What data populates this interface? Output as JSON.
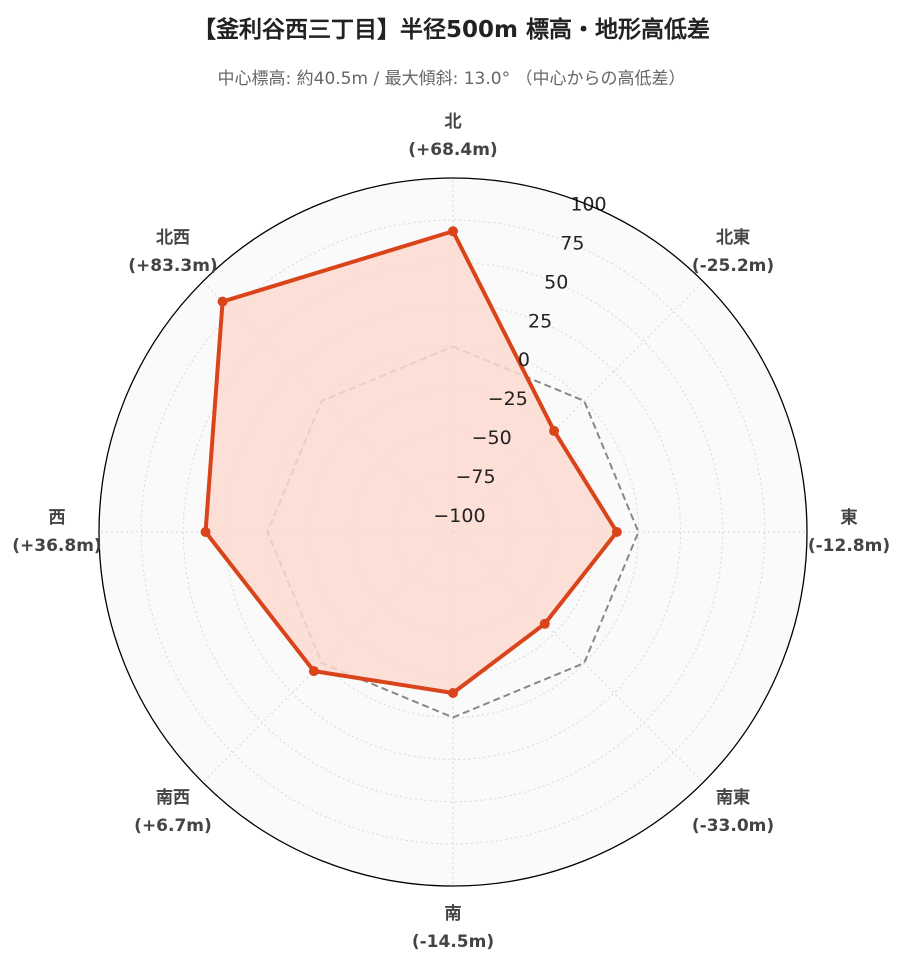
{
  "title": "【釜利谷西三丁目】半径500m 標高・地形高低差",
  "subtitle": "中心標高: 約40.5m / 最大傾斜: 13.0° （中心からの高低差）",
  "colors": {
    "series": "#d9441b",
    "series_fill": "#fcd9d0",
    "reference": "#888888",
    "background": "#fafafa",
    "grid": "#d8d8d8",
    "outline": "#000000"
  },
  "chart_data": {
    "type": "radar",
    "title": "【釜利谷西三丁目】半径500m 標高・地形高低差",
    "subtitle": "中心標高: 約40.5m / 最大傾斜: 13.0° （中心からの高低差）",
    "categories": [
      "北",
      "北東",
      "東",
      "南東",
      "南",
      "南西",
      "西",
      "北西"
    ],
    "category_values": [
      "(+68.4m)",
      "(-25.2m)",
      "(-12.8m)",
      "(-33.0m)",
      "(-14.5m)",
      "(+6.7m)",
      "(+36.8m)",
      "(+83.3m)"
    ],
    "series": [
      {
        "values": [
          68.4,
          -25.2,
          -12.8,
          -33.0,
          -14.5,
          6.7,
          36.8,
          83.3
        ]
      },
      {
        "values": [
          0,
          0,
          0,
          0,
          0,
          0,
          0,
          0
        ]
      }
    ],
    "radial_range": [
      -110,
      100
    ],
    "radial_ticks": [
      -100,
      -75,
      -50,
      -25,
      0,
      25,
      50,
      75,
      100
    ],
    "radial_tick_labels": [
      "−100",
      "−75",
      "−50",
      "−25",
      "0",
      "25",
      "50",
      "75",
      "100"
    ],
    "grid": true,
    "legend": "none"
  }
}
